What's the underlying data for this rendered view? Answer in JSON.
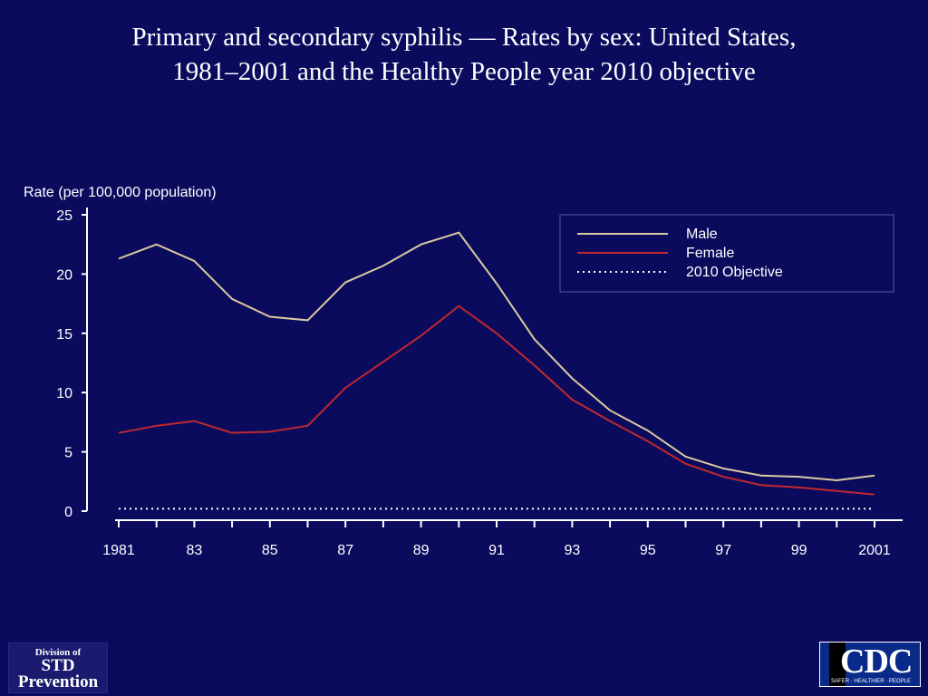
{
  "slide": {
    "title_line1": "Primary and secondary syphilis — Rates by sex: United States,",
    "title_line2": "1981–2001 and the Healthy People year 2010 objective"
  },
  "logos": {
    "std_line1": "Division of",
    "std_line2": "STD",
    "std_line3": "Prevention",
    "cdc_text": "CDC",
    "cdc_tagline": "SAFER · HEALTHIER · PEOPLE"
  },
  "colors": {
    "background": "#0b0b5e",
    "male": "#d9c9a0",
    "female": "#c0282d",
    "objective": "#ffffff",
    "axis": "#ffffff"
  },
  "chart_data": {
    "type": "line",
    "title": "Primary and secondary syphilis — Rates by sex: United States, 1981–2001 and the Healthy People year 2010 objective",
    "xlabel": "",
    "ylabel": "Rate (per 100,000 population)",
    "x": [
      1981,
      1982,
      1983,
      1984,
      1985,
      1986,
      1987,
      1988,
      1989,
      1990,
      1991,
      1992,
      1993,
      1994,
      1995,
      1996,
      1997,
      1998,
      1999,
      2000,
      2001
    ],
    "xtick_values": [
      1981,
      1983,
      1985,
      1987,
      1989,
      1991,
      1993,
      1995,
      1997,
      1999,
      2001
    ],
    "xtick_labels": [
      "1981",
      "83",
      "85",
      "87",
      "89",
      "91",
      "93",
      "95",
      "97",
      "99",
      "2001"
    ],
    "yticks": [
      0,
      5,
      10,
      15,
      20,
      25
    ],
    "ylim": [
      0,
      25
    ],
    "xlim": [
      1981,
      2001
    ],
    "grid": false,
    "legend_position": "top-right",
    "series": [
      {
        "name": "Male",
        "style": "solid",
        "color": "#d9c9a0",
        "values": [
          21.3,
          22.5,
          21.1,
          17.9,
          16.4,
          16.1,
          19.3,
          20.7,
          22.5,
          23.5,
          19.2,
          14.5,
          11.2,
          8.5,
          6.8,
          4.6,
          3.6,
          3.0,
          2.9,
          2.6,
          3.0
        ]
      },
      {
        "name": "Female",
        "style": "solid",
        "color": "#c0282d",
        "values": [
          6.6,
          7.2,
          7.6,
          6.6,
          6.7,
          7.2,
          10.4,
          12.6,
          14.8,
          17.3,
          15.0,
          12.3,
          9.4,
          7.6,
          5.9,
          4.0,
          2.9,
          2.2,
          2.0,
          1.7,
          1.4
        ]
      },
      {
        "name": "2010 Objective",
        "style": "dotted",
        "color": "#ffffff",
        "values": [
          0.2,
          0.2,
          0.2,
          0.2,
          0.2,
          0.2,
          0.2,
          0.2,
          0.2,
          0.2,
          0.2,
          0.2,
          0.2,
          0.2,
          0.2,
          0.2,
          0.2,
          0.2,
          0.2,
          0.2,
          0.2
        ]
      }
    ]
  }
}
